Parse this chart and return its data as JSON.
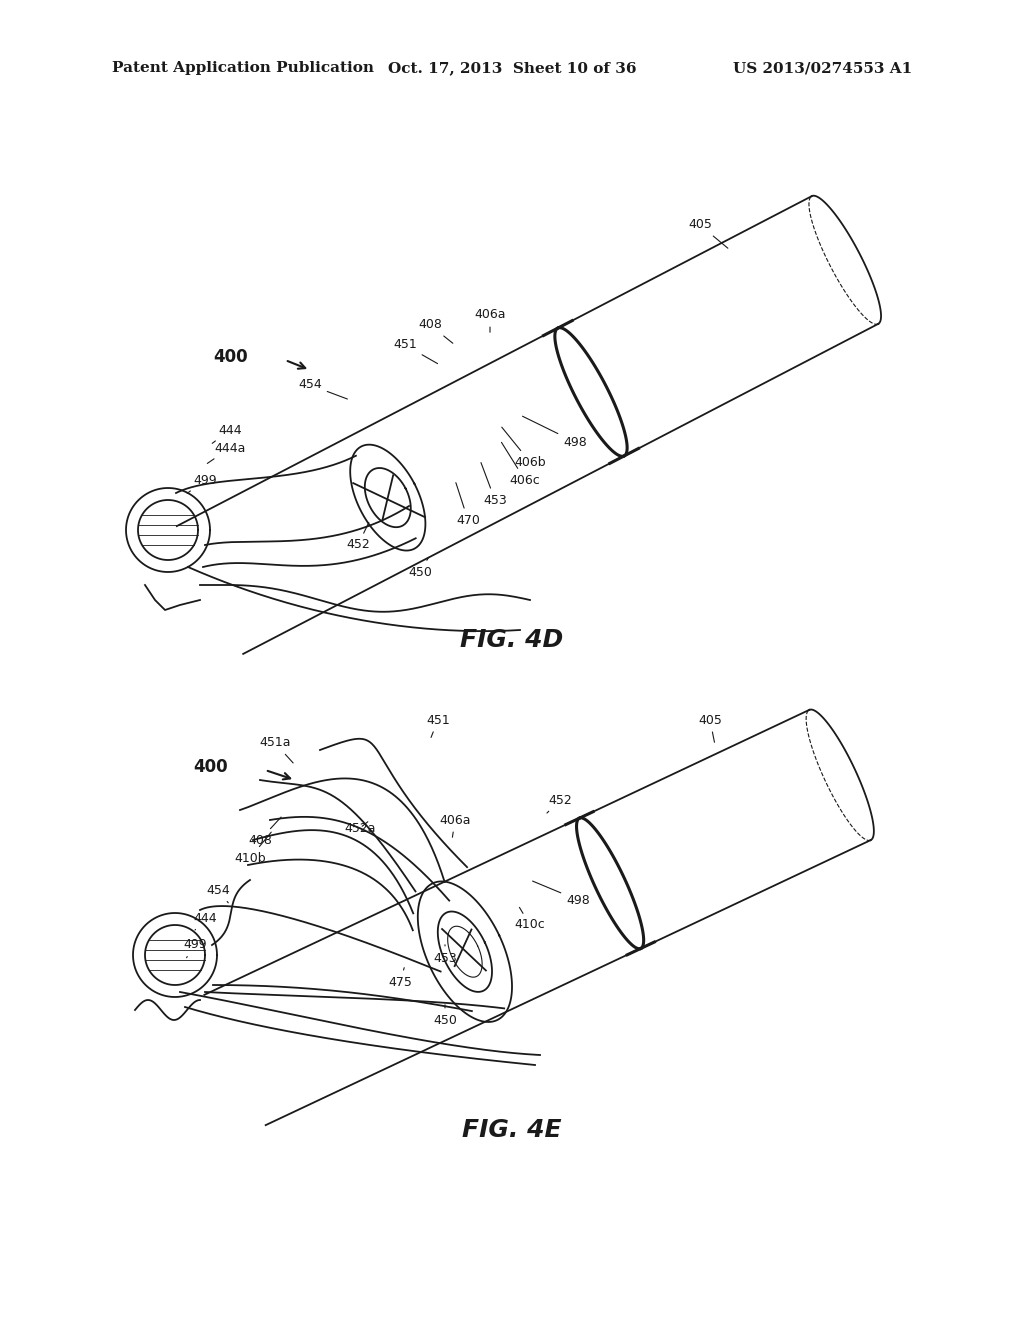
{
  "background_color": "#ffffff",
  "header_left": "Patent Application Publication",
  "header_mid": "Oct. 17, 2013  Sheet 10 of 36",
  "header_right": "US 2013/0274553 A1",
  "fig_4d_label": "FIG. 4D",
  "fig_4e_label": "FIG. 4E",
  "annotation_fontsize": 9,
  "bold_label_fontsize": 11,
  "header_fontsize": 11
}
